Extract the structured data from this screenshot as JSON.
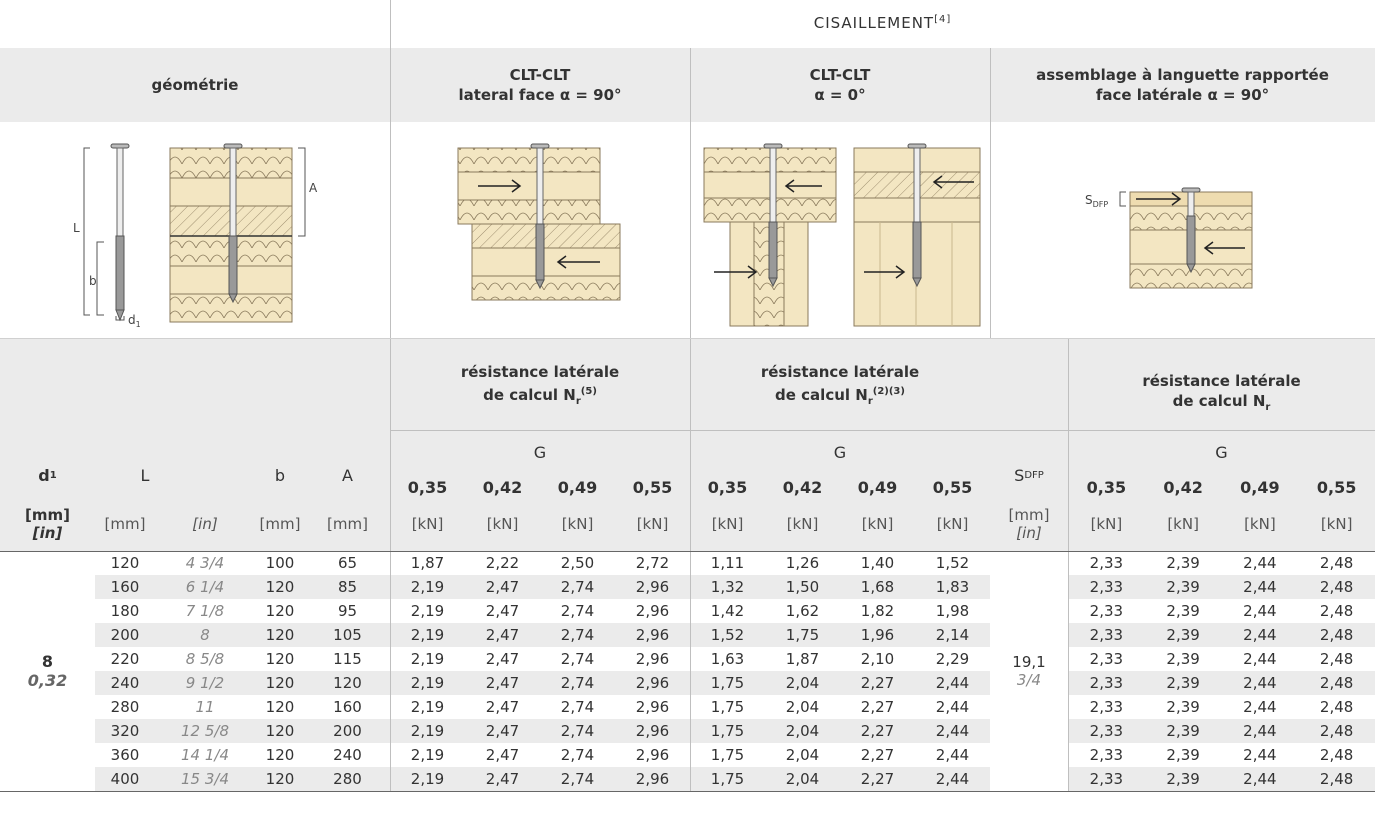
{
  "title": "CISAILLEMENT",
  "title_sup": "[4]",
  "headers": {
    "geometrie": "géométrie",
    "col1": [
      "CLT-CLT",
      "lateral face α = 90°"
    ],
    "col2": [
      "CLT-CLT",
      "α = 0°"
    ],
    "col3": [
      "assemblage à languette rapportée",
      "face latérale α = 90°"
    ]
  },
  "drawings": {
    "label_L": "L",
    "label_b": "b",
    "label_d1": "d",
    "label_d1_sub": "1",
    "label_A": "A",
    "label_sdfp": "S",
    "label_sdfp_sub": "DFP"
  },
  "table_header": {
    "grp1": [
      "résistance latérale",
      "de calcul N"
    ],
    "grp1_sub": "r",
    "grp1_sup": "(5)",
    "grp2": [
      "résistance latérale",
      "de calcul N"
    ],
    "grp2_sub": "r",
    "grp2_sup": "(2)(3)",
    "grp3": [
      "résistance latérale",
      "de calcul N"
    ],
    "grp3_sub": "r",
    "G": "G",
    "g_values": [
      "0,35",
      "0,42",
      "0,49",
      "0,55"
    ],
    "d1": "d",
    "d1_sub": "1",
    "L": "L",
    "b": "b",
    "A": "A",
    "sdfp": "S",
    "sdfp_sub": "DFP",
    "units": {
      "mm": "[mm]",
      "in": "[in]",
      "kN": "[kN]"
    }
  },
  "d1_value": "8",
  "d1_value_in": "0,32",
  "sdfp_value": "19,1",
  "sdfp_value_in": "3/4",
  "rows": [
    {
      "L": "120",
      "Lin": "4 3/4",
      "b": "100",
      "A": "65",
      "v1": [
        "1,87",
        "2,22",
        "2,50",
        "2,72"
      ],
      "v2": [
        "1,11",
        "1,26",
        "1,40",
        "1,52"
      ],
      "v3": [
        "2,33",
        "2,39",
        "2,44",
        "2,48"
      ]
    },
    {
      "L": "160",
      "Lin": "6 1/4",
      "b": "120",
      "A": "85",
      "v1": [
        "2,19",
        "2,47",
        "2,74",
        "2,96"
      ],
      "v2": [
        "1,32",
        "1,50",
        "1,68",
        "1,83"
      ],
      "v3": [
        "2,33",
        "2,39",
        "2,44",
        "2,48"
      ]
    },
    {
      "L": "180",
      "Lin": "7 1/8",
      "b": "120",
      "A": "95",
      "v1": [
        "2,19",
        "2,47",
        "2,74",
        "2,96"
      ],
      "v2": [
        "1,42",
        "1,62",
        "1,82",
        "1,98"
      ],
      "v3": [
        "2,33",
        "2,39",
        "2,44",
        "2,48"
      ]
    },
    {
      "L": "200",
      "Lin": "8",
      "b": "120",
      "A": "105",
      "v1": [
        "2,19",
        "2,47",
        "2,74",
        "2,96"
      ],
      "v2": [
        "1,52",
        "1,75",
        "1,96",
        "2,14"
      ],
      "v3": [
        "2,33",
        "2,39",
        "2,44",
        "2,48"
      ]
    },
    {
      "L": "220",
      "Lin": "8 5/8",
      "b": "120",
      "A": "115",
      "v1": [
        "2,19",
        "2,47",
        "2,74",
        "2,96"
      ],
      "v2": [
        "1,63",
        "1,87",
        "2,10",
        "2,29"
      ],
      "v3": [
        "2,33",
        "2,39",
        "2,44",
        "2,48"
      ]
    },
    {
      "L": "240",
      "Lin": "9 1/2",
      "b": "120",
      "A": "120",
      "v1": [
        "2,19",
        "2,47",
        "2,74",
        "2,96"
      ],
      "v2": [
        "1,75",
        "2,04",
        "2,27",
        "2,44"
      ],
      "v3": [
        "2,33",
        "2,39",
        "2,44",
        "2,48"
      ]
    },
    {
      "L": "280",
      "Lin": "11",
      "b": "120",
      "A": "160",
      "v1": [
        "2,19",
        "2,47",
        "2,74",
        "2,96"
      ],
      "v2": [
        "1,75",
        "2,04",
        "2,27",
        "2,44"
      ],
      "v3": [
        "2,33",
        "2,39",
        "2,44",
        "2,48"
      ]
    },
    {
      "L": "320",
      "Lin": "12 5/8",
      "b": "120",
      "A": "200",
      "v1": [
        "2,19",
        "2,47",
        "2,74",
        "2,96"
      ],
      "v2": [
        "1,75",
        "2,04",
        "2,27",
        "2,44"
      ],
      "v3": [
        "2,33",
        "2,39",
        "2,44",
        "2,48"
      ]
    },
    {
      "L": "360",
      "Lin": "14 1/4",
      "b": "120",
      "A": "240",
      "v1": [
        "2,19",
        "2,47",
        "2,74",
        "2,96"
      ],
      "v2": [
        "1,75",
        "2,04",
        "2,27",
        "2,44"
      ],
      "v3": [
        "2,33",
        "2,39",
        "2,44",
        "2,48"
      ]
    },
    {
      "L": "400",
      "Lin": "15 3/4",
      "b": "120",
      "A": "280",
      "v1": [
        "2,19",
        "2,47",
        "2,74",
        "2,96"
      ],
      "v2": [
        "1,75",
        "2,04",
        "2,27",
        "2,44"
      ],
      "v3": [
        "2,33",
        "2,39",
        "2,44",
        "2,48"
      ]
    }
  ]
}
